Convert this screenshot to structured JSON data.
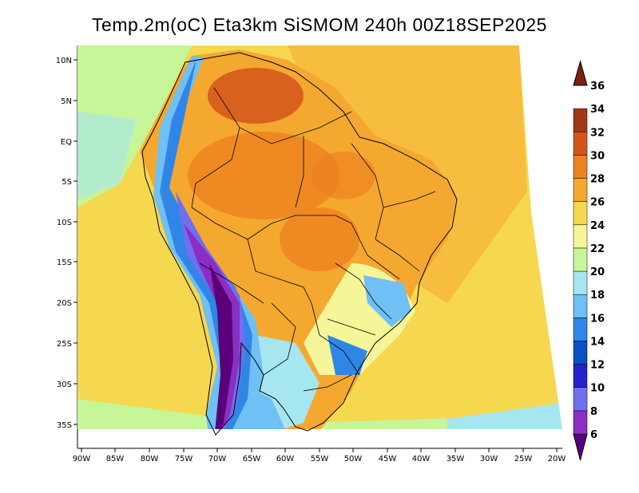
{
  "title": "Temp.2m(oC) Eta3km SiSMOM 240h 00Z18SEP2025",
  "units": "oC",
  "lat_ticks": [
    "10N",
    "5N",
    "EQ",
    "5S",
    "10S",
    "15S",
    "20S",
    "25S",
    "30S",
    "35S"
  ],
  "lon_ticks": [
    "90W",
    "85W",
    "80W",
    "75W",
    "70W",
    "65W",
    "60W",
    "55W",
    "50W",
    "45W",
    "40W",
    "35W",
    "30W",
    "25W",
    "20W"
  ],
  "colorbar": {
    "levels": [
      "6",
      "8",
      "10",
      "12",
      "14",
      "16",
      "18",
      "20",
      "22",
      "24",
      "26",
      "28",
      "30",
      "32",
      "34",
      "36"
    ],
    "colors": [
      "#5a007a",
      "#8a2ec4",
      "#6f6fef",
      "#2222cc",
      "#0a4fc4",
      "#2f86e6",
      "#6ec0f5",
      "#a6e6f0",
      "#c6f59a",
      "#f5f59a",
      "#f5d850",
      "#f5a830",
      "#ee8220",
      "#d2561a",
      "#a33816",
      "#7a2410"
    ]
  },
  "map_layers": [
    "temperature-field",
    "continent-outline",
    "country-borders",
    "brazil-state-borders"
  ]
}
